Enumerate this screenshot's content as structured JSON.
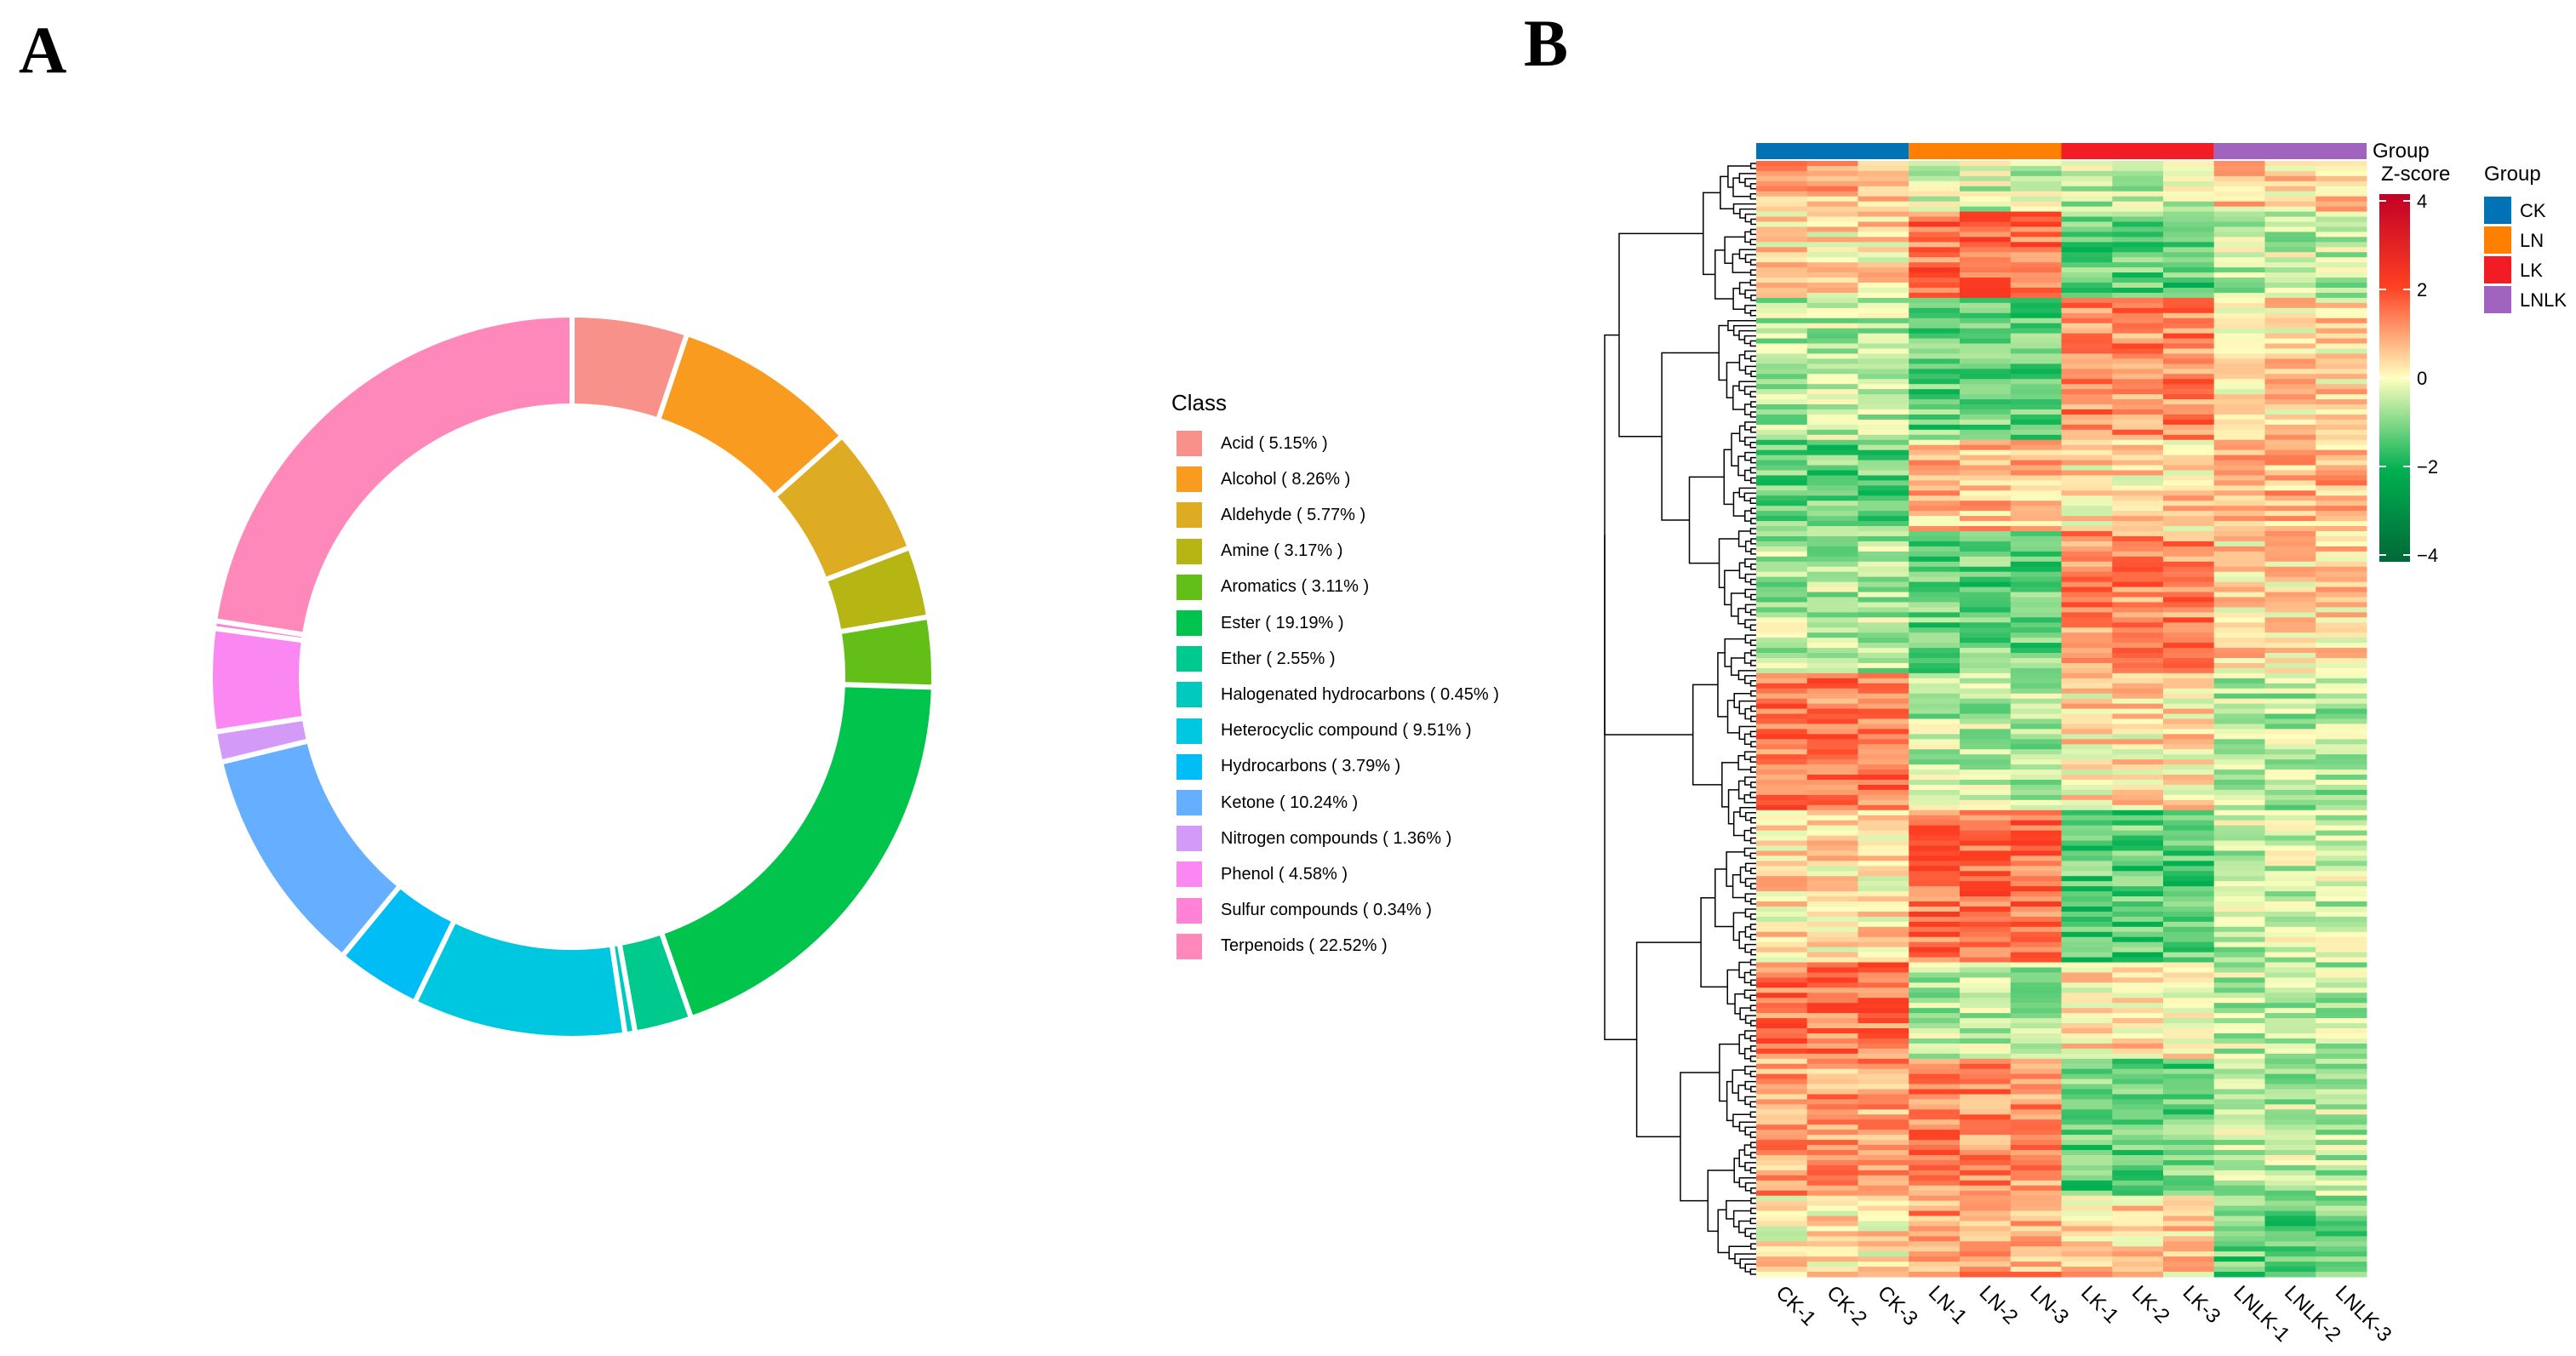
{
  "panels": {
    "a_label": "A",
    "b_label": "B"
  },
  "chart_data": [
    {
      "type": "pie",
      "subtype": "donut",
      "legend_title": "Class",
      "legend_position": "right",
      "slices": [
        {
          "label": "Acid ( 5.15% )",
          "name": "Acid",
          "value": 5.15,
          "color": "#F8918A"
        },
        {
          "label": "Alcohol ( 8.26% )",
          "name": "Alcohol",
          "value": 8.26,
          "color": "#F89B1E"
        },
        {
          "label": "Aldehyde ( 5.77% )",
          "name": "Aldehyde",
          "value": 5.77,
          "color": "#DEAC22"
        },
        {
          "label": "Amine ( 3.17% )",
          "name": "Amine",
          "value": 3.17,
          "color": "#B5B614"
        },
        {
          "label": "Aromatics ( 3.11% )",
          "name": "Aromatics",
          "value": 3.11,
          "color": "#63BE18"
        },
        {
          "label": "Ester ( 19.19% )",
          "name": "Ester",
          "value": 19.19,
          "color": "#00C44C"
        },
        {
          "label": "Ether ( 2.55% )",
          "name": "Ether",
          "value": 2.55,
          "color": "#00C98E"
        },
        {
          "label": "Halogenated hydrocarbons ( 0.45% )",
          "name": "Halogenated hydrocarbons",
          "value": 0.45,
          "color": "#00CABD"
        },
        {
          "label": "Heterocyclic compound ( 9.51% )",
          "name": "Heterocyclic compound",
          "value": 9.51,
          "color": "#00C7E0"
        },
        {
          "label": "Hydrocarbons ( 3.79% )",
          "name": "Hydrocarbons",
          "value": 3.79,
          "color": "#00BEF5"
        },
        {
          "label": "Ketone ( 10.24% )",
          "name": "Ketone",
          "value": 10.24,
          "color": "#66AEFF"
        },
        {
          "label": "Nitrogen compounds ( 1.36% )",
          "name": "Nitrogen compounds",
          "value": 1.36,
          "color": "#D39AF8"
        },
        {
          "label": "Phenol ( 4.58% )",
          "name": "Phenol",
          "value": 4.58,
          "color": "#FB87F3"
        },
        {
          "label": "Sulfur compounds ( 0.34% )",
          "name": "Sulfur compounds",
          "value": 0.34,
          "color": "#FF82D6"
        },
        {
          "label": "Terpenoids ( 22.52% )",
          "name": "Terpenoids",
          "value": 22.52,
          "color": "#FF88BA"
        }
      ]
    },
    {
      "type": "heatmap",
      "samples": [
        "CK-1",
        "CK-2",
        "CK-3",
        "LN-1",
        "LN-2",
        "LN-3",
        "LK-1",
        "LK-2",
        "LK-3",
        "LNLK-1",
        "LNLK-2",
        "LNLK-3"
      ],
      "group_annotation_label": "Group",
      "colorbar_title": "Z-score",
      "colorbar_ticks": [
        "4",
        "2",
        "0",
        "−2",
        "−4"
      ],
      "zlim": [
        -4,
        4
      ],
      "color_scale": [
        "#006837",
        "#00B050",
        "#FFFFBF",
        "#FF3F22",
        "#C00025"
      ],
      "group_legend_title": "Group",
      "groups": [
        {
          "name": "CK",
          "color": "#0072B5"
        },
        {
          "name": "LN",
          "color": "#FF8000"
        },
        {
          "name": "LK",
          "color": "#F21C24"
        },
        {
          "name": "LNLK",
          "color": "#A064BE"
        }
      ]
    }
  ]
}
